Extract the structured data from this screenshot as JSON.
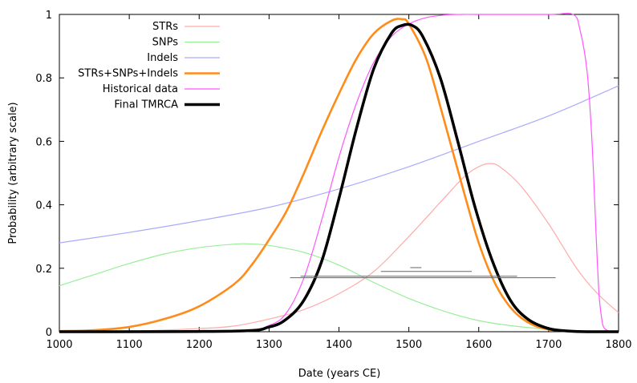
{
  "chart_data": {
    "type": "line",
    "title": "",
    "xlabel": "Date (years CE)",
    "ylabel": "Probability (arbitrary scale)",
    "xlim": [
      1000,
      1800
    ],
    "ylim": [
      0,
      1
    ],
    "x_ticks": [
      1000,
      1100,
      1200,
      1300,
      1400,
      1500,
      1600,
      1700,
      1800
    ],
    "y_ticks": [
      0,
      0.2,
      0.4,
      0.6,
      0.8,
      1
    ],
    "x_tick_labels": [
      "1000",
      "1100",
      "1200",
      "1300",
      "1400",
      "1500",
      "1600",
      "1700",
      "1800"
    ],
    "y_tick_labels": [
      "0",
      "0.2",
      "0.4",
      "0.6",
      "0.8",
      "1"
    ],
    "legend_position": "top-left",
    "series": [
      {
        "name": "STRs",
        "color": "#ffaaaa",
        "weight": "thin",
        "x": [
          1000,
          1100,
          1200,
          1250,
          1300,
          1350,
          1400,
          1450,
          1500,
          1550,
          1580,
          1600,
          1615,
          1630,
          1660,
          1700,
          1740,
          1770,
          1800
        ],
        "y": [
          0.0,
          0.002,
          0.01,
          0.018,
          0.04,
          0.07,
          0.12,
          0.19,
          0.3,
          0.42,
          0.49,
          0.52,
          0.53,
          0.52,
          0.46,
          0.34,
          0.2,
          0.12,
          0.06
        ]
      },
      {
        "name": "SNPs",
        "color": "#99ee99",
        "weight": "thin",
        "x": [
          1000,
          1050,
          1100,
          1150,
          1200,
          1250,
          1270,
          1300,
          1350,
          1400,
          1450,
          1500,
          1550,
          1600,
          1650,
          1700,
          1750,
          1800
        ],
        "y": [
          0.145,
          0.18,
          0.215,
          0.245,
          0.265,
          0.276,
          0.277,
          0.272,
          0.25,
          0.21,
          0.155,
          0.105,
          0.065,
          0.035,
          0.018,
          0.008,
          0.003,
          0.001
        ]
      },
      {
        "name": "Indels",
        "color": "#aaaaff",
        "weight": "thin",
        "x": [
          1000,
          1100,
          1200,
          1300,
          1400,
          1500,
          1600,
          1700,
          1800
        ],
        "y": [
          0.28,
          0.313,
          0.35,
          0.392,
          0.45,
          0.52,
          0.6,
          0.68,
          0.775
        ]
      },
      {
        "name": "STRs+SNPs+Indels",
        "color": "#ff8c1a",
        "weight": "thick",
        "x": [
          1000,
          1050,
          1100,
          1150,
          1200,
          1250,
          1275,
          1300,
          1325,
          1350,
          1375,
          1400,
          1425,
          1450,
          1475,
          1490,
          1500,
          1525,
          1550,
          1575,
          1600,
          1625,
          1650,
          1675,
          1700,
          1725,
          1750
        ],
        "y": [
          0.002,
          0.005,
          0.015,
          0.04,
          0.08,
          0.15,
          0.21,
          0.29,
          0.38,
          0.5,
          0.63,
          0.75,
          0.86,
          0.94,
          0.98,
          0.985,
          0.97,
          0.86,
          0.67,
          0.47,
          0.28,
          0.145,
          0.065,
          0.024,
          0.007,
          0.002,
          0.0
        ]
      },
      {
        "name": "Historical data",
        "color": "#ff55ff",
        "weight": "thin",
        "x": [
          1000,
          1250,
          1300,
          1325,
          1350,
          1375,
          1400,
          1425,
          1450,
          1475,
          1500,
          1525,
          1550,
          1575,
          1600,
          1700,
          1735,
          1745,
          1755,
          1762,
          1768,
          1772,
          1776,
          1780,
          1790,
          1800
        ],
        "y": [
          0.0,
          0.0,
          0.02,
          0.06,
          0.17,
          0.35,
          0.55,
          0.72,
          0.85,
          0.93,
          0.97,
          0.99,
          0.998,
          1.0,
          1.0,
          1.0,
          1.0,
          0.95,
          0.82,
          0.6,
          0.3,
          0.12,
          0.04,
          0.01,
          0.0,
          0.0
        ]
      },
      {
        "name": "Final TMRCA",
        "color": "#000000",
        "weight": "bold",
        "x": [
          1000,
          1250,
          1300,
          1325,
          1350,
          1375,
          1400,
          1425,
          1450,
          1475,
          1490,
          1505,
          1520,
          1545,
          1570,
          1595,
          1620,
          1645,
          1670,
          1700,
          1730,
          1760,
          1800
        ],
        "y": [
          0.0,
          0.002,
          0.015,
          0.04,
          0.1,
          0.22,
          0.42,
          0.64,
          0.83,
          0.94,
          0.965,
          0.965,
          0.93,
          0.8,
          0.6,
          0.39,
          0.22,
          0.1,
          0.04,
          0.01,
          0.002,
          0.0,
          0.0
        ]
      }
    ],
    "intervals": [
      {
        "x0": 1502,
        "x1": 1518,
        "y": 0.202,
        "color": "#666666"
      },
      {
        "x0": 1460,
        "x1": 1590,
        "y": 0.19,
        "color": "#666666"
      },
      {
        "x0": 1345,
        "x1": 1655,
        "y": 0.175,
        "color": "#666666"
      },
      {
        "x0": 1330,
        "x1": 1710,
        "y": 0.17,
        "color": "#666666"
      }
    ]
  }
}
